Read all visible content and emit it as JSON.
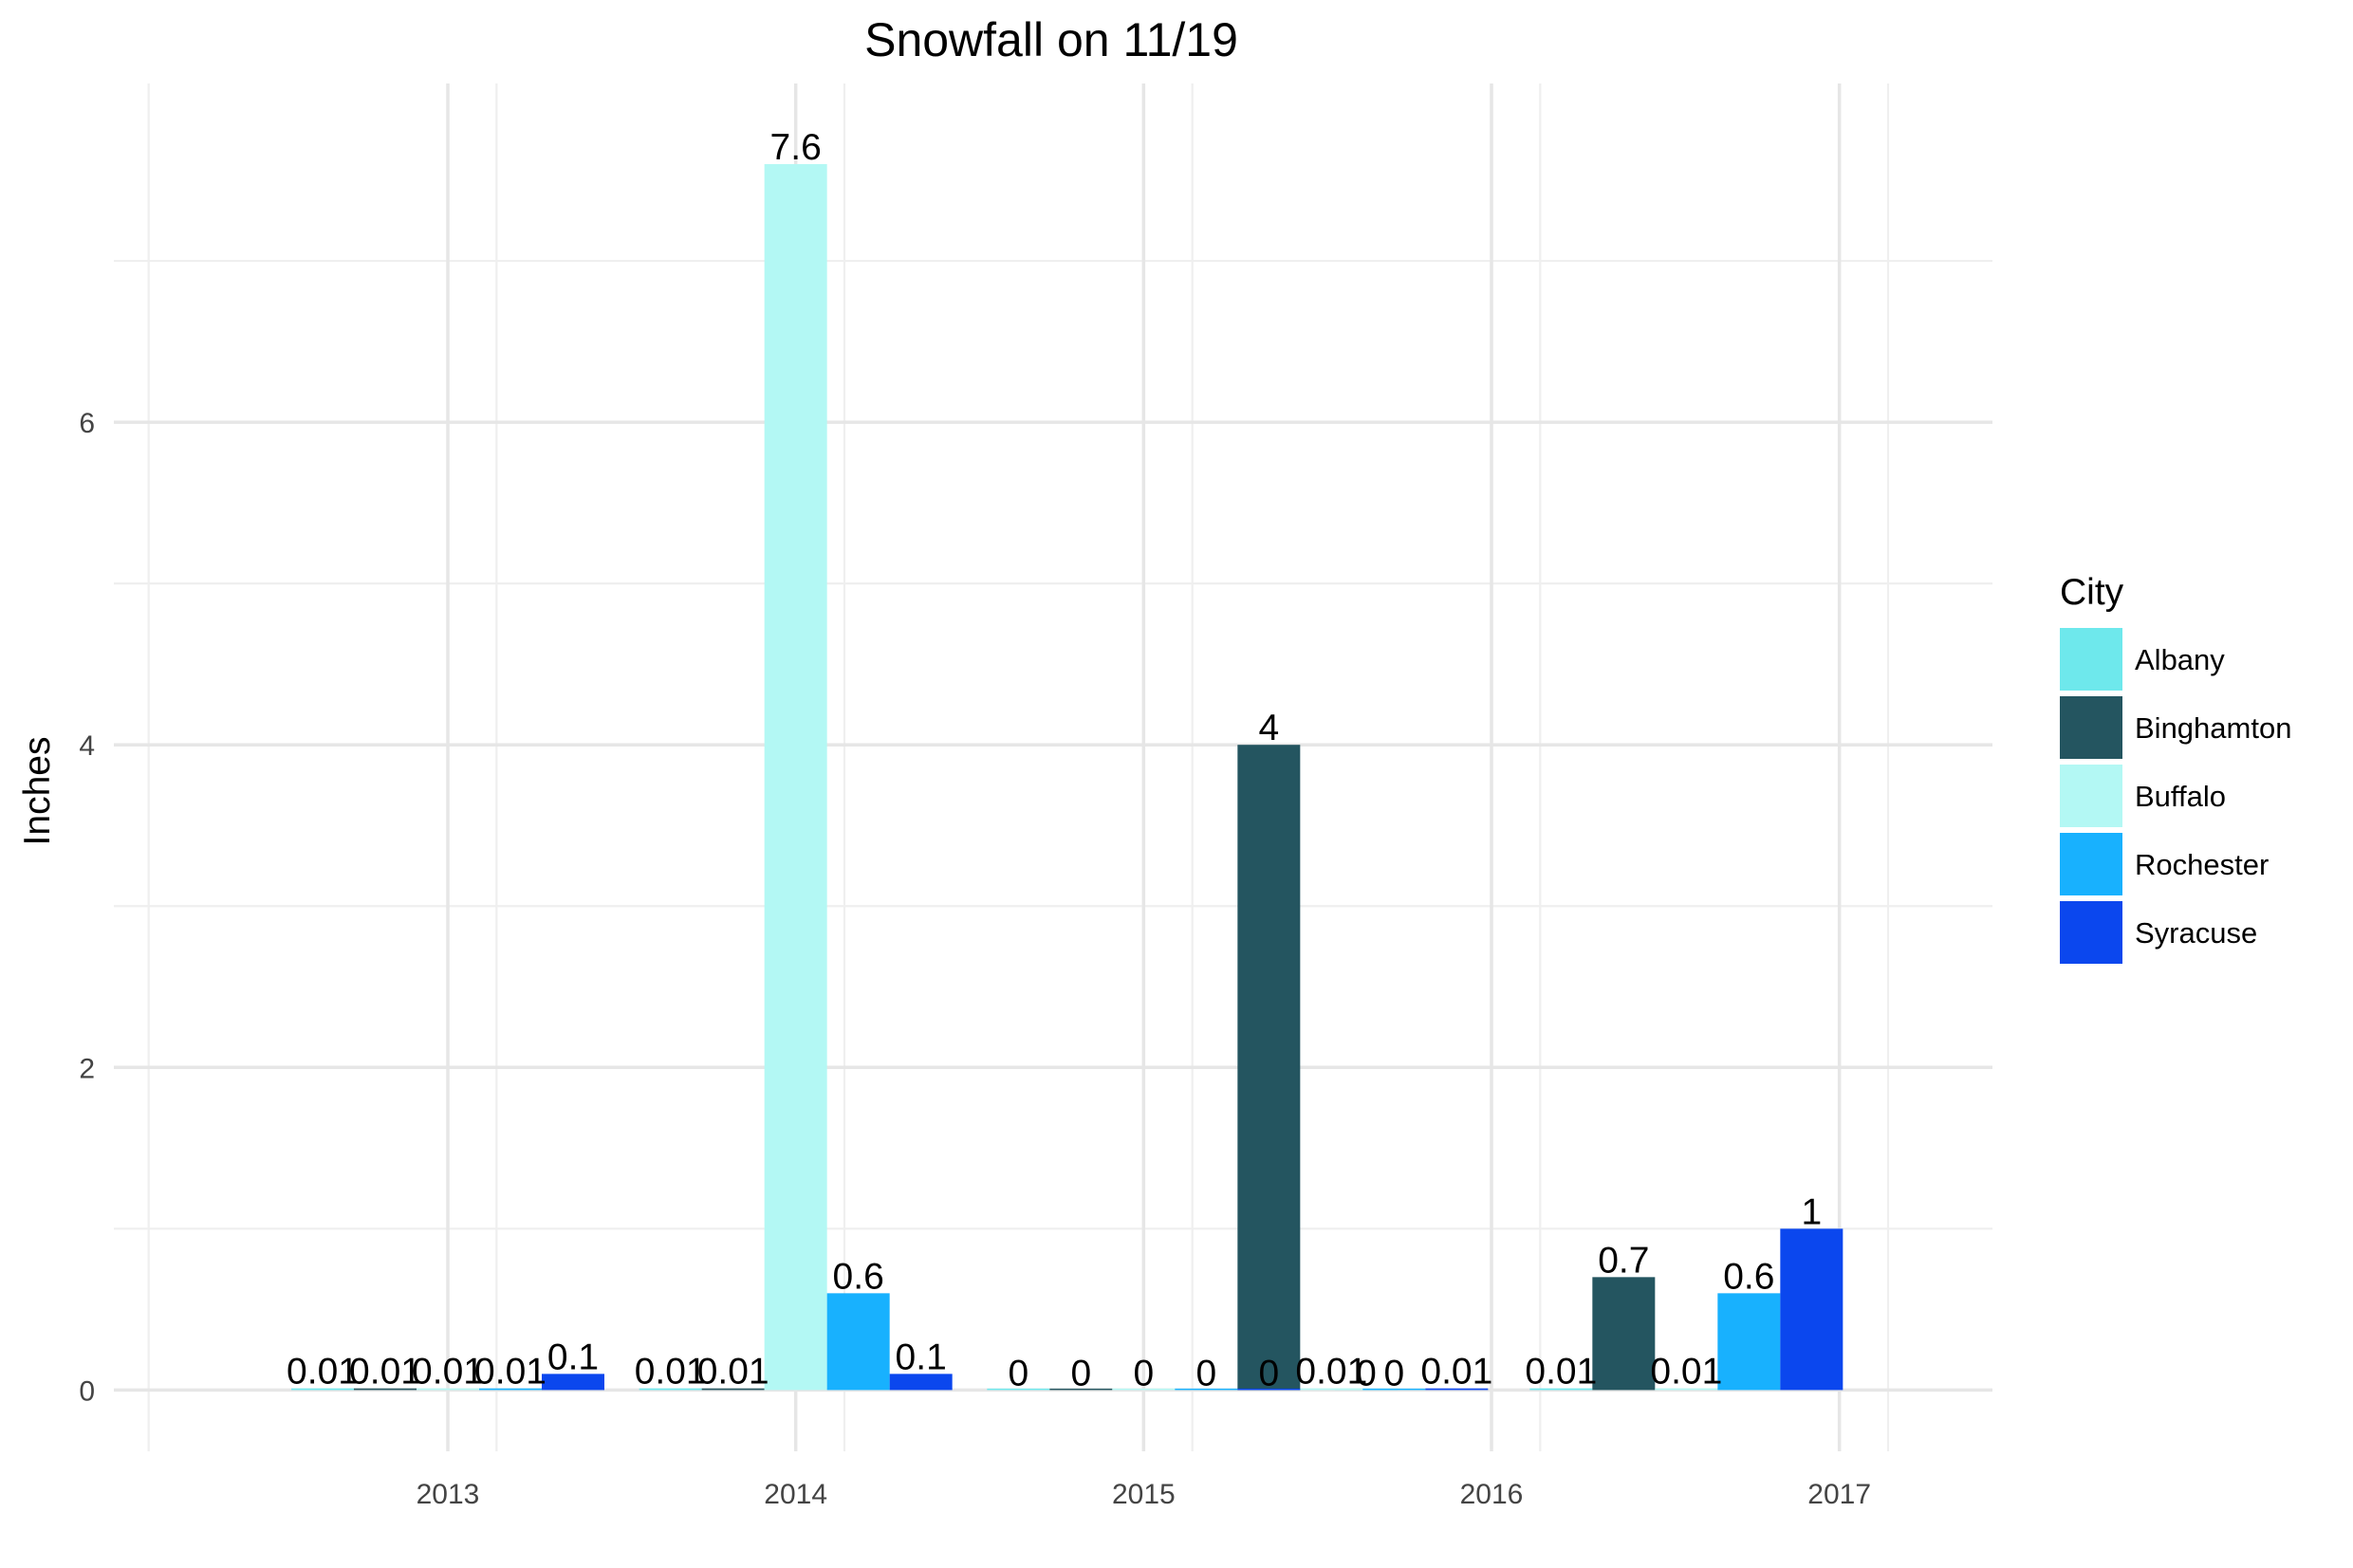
{
  "chart_data": {
    "type": "bar",
    "title": "Snowfall on 11/19",
    "xlabel": "",
    "ylabel": "Inches",
    "categories": [
      "2013",
      "2014",
      "2015",
      "2016",
      "2017"
    ],
    "x_range": [
      0.4,
      5.8
    ],
    "ylim": [
      -0.38,
      8.1
    ],
    "y_ticks": [
      0,
      2,
      4,
      6
    ],
    "grid": true,
    "legend": {
      "title": "City",
      "position": "right"
    },
    "series": [
      {
        "name": "Albany",
        "color": "#6EE8EC",
        "bars": [
          {
            "x": 1.0,
            "value": 0.01,
            "label": "0.01"
          },
          {
            "x": 2.0,
            "value": 0.01,
            "label": "0.01"
          },
          {
            "x": 3.0,
            "value": 0,
            "label": "0"
          },
          {
            "x": 4.0,
            "value": 0,
            "label": "0"
          },
          {
            "x": 4.56,
            "value": 0.01,
            "label": "0.01"
          }
        ]
      },
      {
        "name": "Binghamton",
        "color": "#245560",
        "bars": [
          {
            "x": 1.18,
            "value": 0.01,
            "label": "0.01"
          },
          {
            "x": 2.18,
            "value": 0.01,
            "label": "0.01"
          },
          {
            "x": 3.18,
            "value": 0,
            "label": "0"
          },
          {
            "x": 3.72,
            "value": 4,
            "label": "4"
          },
          {
            "x": 4.74,
            "value": 0.7,
            "label": "0.7"
          }
        ]
      },
      {
        "name": "Buffalo",
        "color": "#B3F8F4",
        "bars": [
          {
            "x": 1.36,
            "value": 0.01,
            "label": "0.01"
          },
          {
            "x": 2.36,
            "value": 7.6,
            "label": "7.6"
          },
          {
            "x": 3.36,
            "value": 0,
            "label": "0"
          },
          {
            "x": 3.9,
            "value": 0.01,
            "label": "0.01"
          },
          {
            "x": 4.92,
            "value": 0.01,
            "label": "0.01"
          }
        ]
      },
      {
        "name": "Rochester",
        "color": "#18B1FE",
        "bars": [
          {
            "x": 1.54,
            "value": 0.01,
            "label": "0.01"
          },
          {
            "x": 2.54,
            "value": 0.6,
            "label": "0.6"
          },
          {
            "x": 3.54,
            "value": 0,
            "label": "0"
          },
          {
            "x": 4.08,
            "value": 0,
            "label": "0"
          },
          {
            "x": 5.1,
            "value": 0.6,
            "label": "0.6"
          }
        ]
      },
      {
        "name": "Syracuse",
        "color": "#0B47EE",
        "bars": [
          {
            "x": 1.72,
            "value": 0.1,
            "label": "0.1"
          },
          {
            "x": 2.72,
            "value": 0.1,
            "label": "0.1"
          },
          {
            "x": 3.72,
            "value": 0,
            "label": "0"
          },
          {
            "x": 4.26,
            "value": 0.01,
            "label": "0.01"
          },
          {
            "x": 5.28,
            "value": 1,
            "label": "1"
          }
        ]
      }
    ]
  }
}
